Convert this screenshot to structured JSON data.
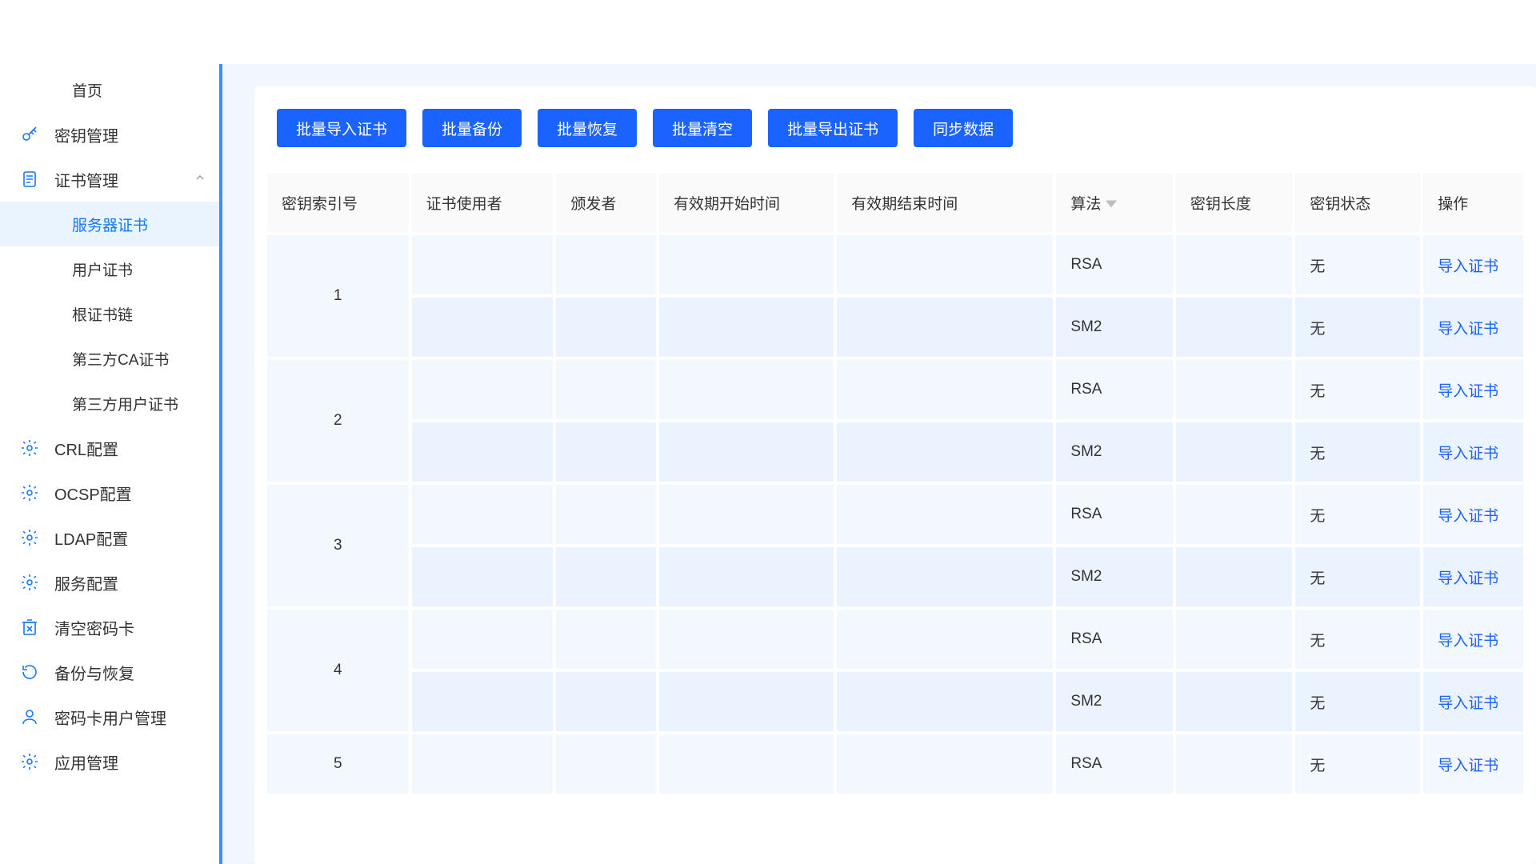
{
  "colors": {
    "primary": "#1a63ff",
    "primary_light": "#eaf4ff",
    "content_bg": "#f1f6ff",
    "row_even": "#f3f8ff",
    "row_odd": "#eaf3ff",
    "sidebar_border": "#3a8ef7"
  },
  "sidebar": {
    "items": [
      {
        "name": "home",
        "label": "首页",
        "icon": null,
        "sub": true,
        "hasChevron": false
      },
      {
        "name": "key-mgmt",
        "label": "密钥管理",
        "icon": "key",
        "sub": false,
        "hasChevron": false
      },
      {
        "name": "cert-mgmt",
        "label": "证书管理",
        "icon": "doc",
        "sub": false,
        "hasChevron": true,
        "chevron": "up"
      },
      {
        "name": "server-cert",
        "label": "服务器证书",
        "icon": null,
        "sub": true,
        "active": true
      },
      {
        "name": "user-cert",
        "label": "用户证书",
        "icon": null,
        "sub": true
      },
      {
        "name": "root-chain",
        "label": "根证书链",
        "icon": null,
        "sub": true
      },
      {
        "name": "thirdparty-ca",
        "label": "第三方CA证书",
        "icon": null,
        "sub": true
      },
      {
        "name": "thirdparty-user",
        "label": "第三方用户证书",
        "icon": null,
        "sub": true
      },
      {
        "name": "crl",
        "label": "CRL配置",
        "icon": "gear",
        "sub": false
      },
      {
        "name": "ocsp",
        "label": "OCSP配置",
        "icon": "gear",
        "sub": false
      },
      {
        "name": "ldap",
        "label": "LDAP配置",
        "icon": "gear",
        "sub": false
      },
      {
        "name": "service",
        "label": "服务配置",
        "icon": "gear",
        "sub": false
      },
      {
        "name": "clear-card",
        "label": "清空密码卡",
        "icon": "trash",
        "sub": false
      },
      {
        "name": "backup",
        "label": "备份与恢复",
        "icon": "restore",
        "sub": false
      },
      {
        "name": "card-users",
        "label": "密码卡用户管理",
        "icon": "user",
        "sub": false
      },
      {
        "name": "app-mgmt",
        "label": "应用管理",
        "icon": "gear",
        "sub": false
      }
    ]
  },
  "toolbar": {
    "buttons": [
      {
        "name": "batch-import",
        "label": "批量导入证书"
      },
      {
        "name": "batch-backup",
        "label": "批量备份"
      },
      {
        "name": "batch-restore",
        "label": "批量恢复"
      },
      {
        "name": "batch-clear",
        "label": "批量清空"
      },
      {
        "name": "batch-export",
        "label": "批量导出证书"
      },
      {
        "name": "sync-data",
        "label": "同步数据"
      }
    ]
  },
  "table": {
    "columns": [
      {
        "key": "index",
        "label": "密钥索引号"
      },
      {
        "key": "user",
        "label": "证书使用者"
      },
      {
        "key": "issuer",
        "label": "颁发者"
      },
      {
        "key": "start",
        "label": "有效期开始时间"
      },
      {
        "key": "end",
        "label": "有效期结束时间"
      },
      {
        "key": "alg",
        "label": "算法",
        "sortable": true
      },
      {
        "key": "length",
        "label": "密钥长度"
      },
      {
        "key": "state",
        "label": "密钥状态"
      },
      {
        "key": "op",
        "label": "操作"
      }
    ],
    "action_label": "导入证书",
    "rows": [
      {
        "index": "1",
        "subrows": [
          {
            "user": "",
            "issuer": "",
            "start": "",
            "end": "",
            "alg": "RSA",
            "length": "",
            "state": "无"
          },
          {
            "user": "",
            "issuer": "",
            "start": "",
            "end": "",
            "alg": "SM2",
            "length": "",
            "state": "无"
          }
        ]
      },
      {
        "index": "2",
        "subrows": [
          {
            "user": "",
            "issuer": "",
            "start": "",
            "end": "",
            "alg": "RSA",
            "length": "",
            "state": "无"
          },
          {
            "user": "",
            "issuer": "",
            "start": "",
            "end": "",
            "alg": "SM2",
            "length": "",
            "state": "无"
          }
        ]
      },
      {
        "index": "3",
        "subrows": [
          {
            "user": "",
            "issuer": "",
            "start": "",
            "end": "",
            "alg": "RSA",
            "length": "",
            "state": "无"
          },
          {
            "user": "",
            "issuer": "",
            "start": "",
            "end": "",
            "alg": "SM2",
            "length": "",
            "state": "无"
          }
        ]
      },
      {
        "index": "4",
        "subrows": [
          {
            "user": "",
            "issuer": "",
            "start": "",
            "end": "",
            "alg": "RSA",
            "length": "",
            "state": "无"
          },
          {
            "user": "",
            "issuer": "",
            "start": "",
            "end": "",
            "alg": "SM2",
            "length": "",
            "state": "无"
          }
        ]
      },
      {
        "index": "5",
        "subrows": [
          {
            "user": "",
            "issuer": "",
            "start": "",
            "end": "",
            "alg": "RSA",
            "length": "",
            "state": "无"
          }
        ]
      }
    ]
  }
}
